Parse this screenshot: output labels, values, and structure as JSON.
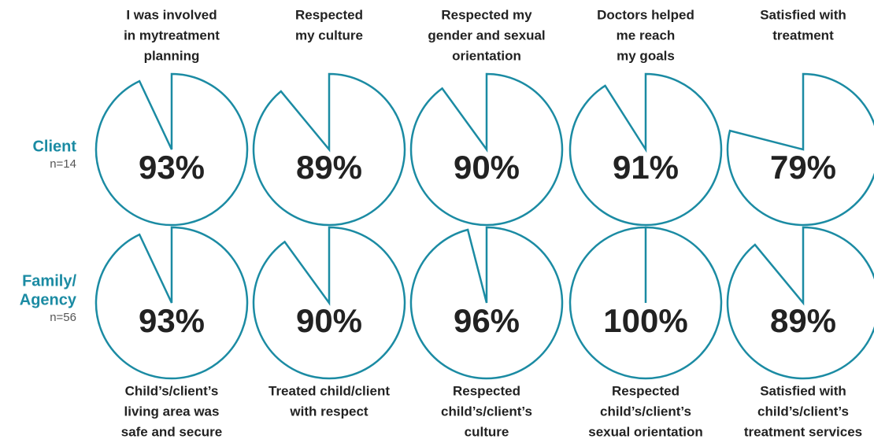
{
  "rows": [
    {
      "label": [
        "Client"
      ],
      "n": "n=14"
    },
    {
      "label": [
        "Family/",
        "Agency"
      ],
      "n": "n=56"
    }
  ],
  "chart_data": [
    {
      "type": "pie",
      "row": 0,
      "col": 0,
      "title": [
        "I was involved",
        "in mytreatment",
        "planning"
      ],
      "values": [
        93
      ],
      "value_labels": [
        "93%"
      ],
      "color": "#1b8ba3"
    },
    {
      "type": "pie",
      "row": 0,
      "col": 1,
      "title": [
        "Respected",
        "my culture"
      ],
      "values": [
        89
      ],
      "value_labels": [
        "89%"
      ],
      "color": "#1b8ba3"
    },
    {
      "type": "pie",
      "row": 0,
      "col": 2,
      "title": [
        "Respected my",
        "gender and sexual",
        "orientation"
      ],
      "values": [
        90
      ],
      "value_labels": [
        "90%"
      ],
      "color": "#1b8ba3"
    },
    {
      "type": "pie",
      "row": 0,
      "col": 3,
      "title": [
        "Doctors helped",
        "me reach",
        "my goals"
      ],
      "values": [
        91
      ],
      "value_labels": [
        "91%"
      ],
      "color": "#1b8ba3"
    },
    {
      "type": "pie",
      "row": 0,
      "col": 4,
      "title": [
        "Satisfied with",
        "treatment"
      ],
      "values": [
        79
      ],
      "value_labels": [
        "79%"
      ],
      "color": "#1b8ba3"
    },
    {
      "type": "pie",
      "row": 1,
      "col": 0,
      "title": [
        "Child’s/client’s",
        "living area was",
        "safe and secure"
      ],
      "values": [
        93
      ],
      "value_labels": [
        "93%"
      ],
      "color": "#1b8ba3"
    },
    {
      "type": "pie",
      "row": 1,
      "col": 1,
      "title": [
        "Treated child/client",
        "with respect"
      ],
      "values": [
        90
      ],
      "value_labels": [
        "90%"
      ],
      "color": "#1b8ba3"
    },
    {
      "type": "pie",
      "row": 1,
      "col": 2,
      "title": [
        "Respected",
        "child’s/client’s",
        "culture"
      ],
      "values": [
        96
      ],
      "value_labels": [
        "96%"
      ],
      "color": "#1b8ba3"
    },
    {
      "type": "pie",
      "row": 1,
      "col": 3,
      "title": [
        "Respected",
        "child’s/client’s",
        "sexual orientation"
      ],
      "values": [
        100
      ],
      "value_labels": [
        "100%"
      ],
      "color": "#1b8ba3"
    },
    {
      "type": "pie",
      "row": 1,
      "col": 4,
      "title": [
        "Satisfied with",
        "child’s/client’s",
        "treatment services"
      ],
      "values": [
        89
      ],
      "value_labels": [
        "89%"
      ],
      "color": "#1b8ba3"
    }
  ]
}
